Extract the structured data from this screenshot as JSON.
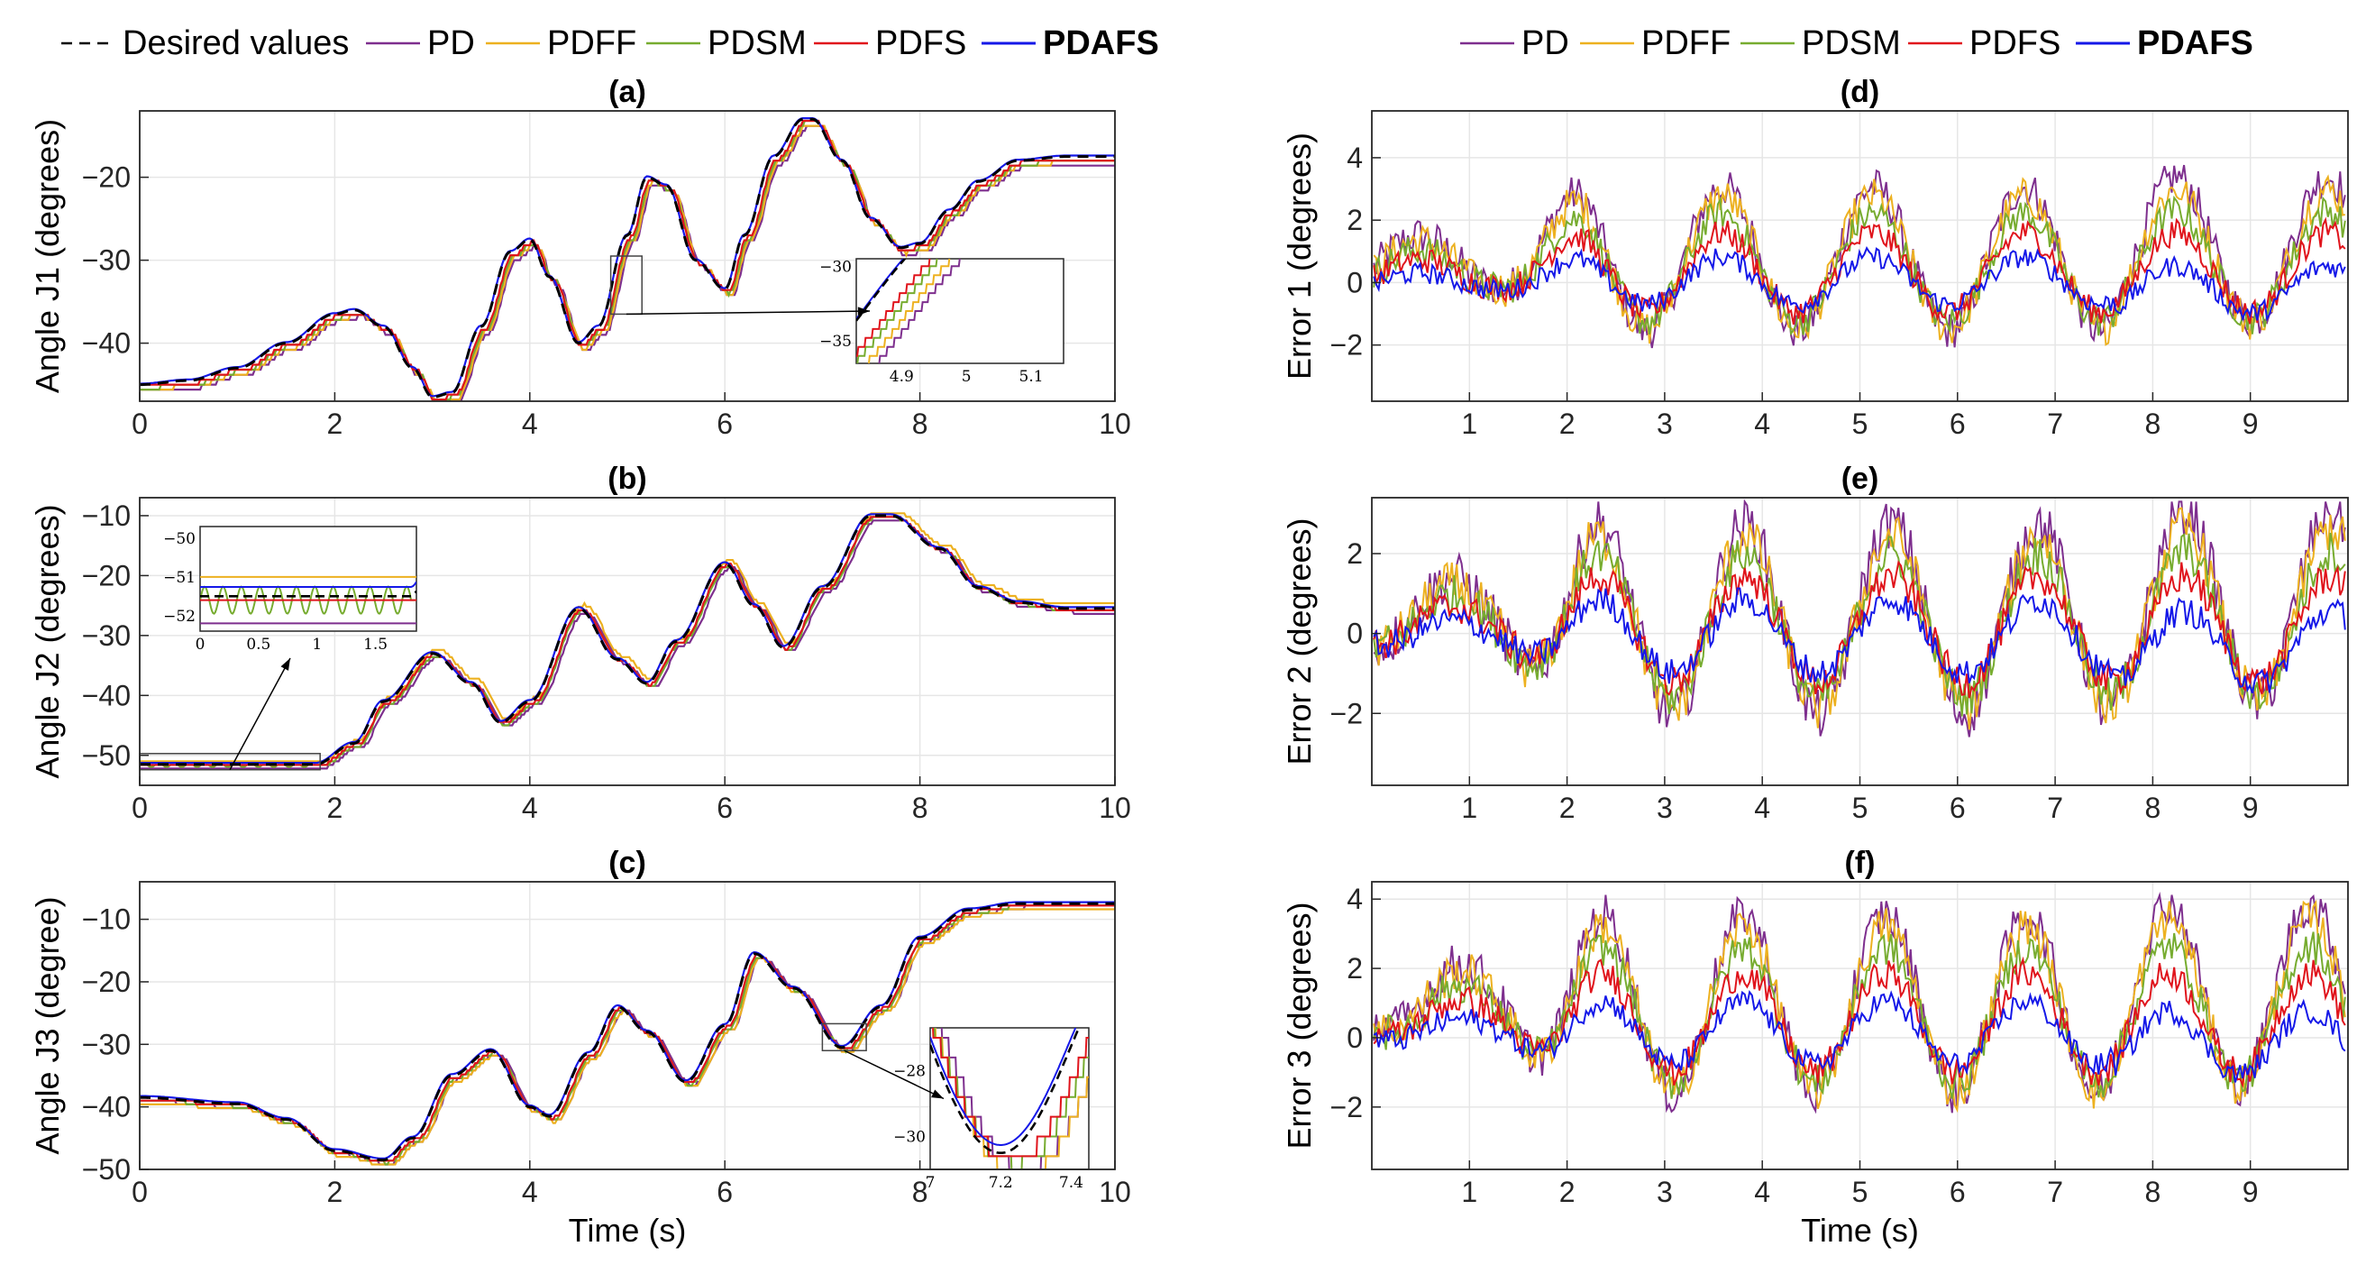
{
  "legend_left": [
    {
      "name": "Desired values",
      "color": "#000000",
      "dash": true,
      "bold": false
    },
    {
      "name": "PD",
      "color": "#7E2F8E",
      "dash": false,
      "bold": false
    },
    {
      "name": "PDFF",
      "color": "#EDB120",
      "dash": false,
      "bold": false
    },
    {
      "name": "PDSM",
      "color": "#77AC30",
      "dash": false,
      "bold": false
    },
    {
      "name": "PDFS",
      "color": "#E0141C",
      "dash": false,
      "bold": false
    },
    {
      "name": "PDAFS",
      "color": "#1518E8",
      "dash": false,
      "bold": true
    }
  ],
  "legend_right": [
    {
      "name": "PD",
      "color": "#7E2F8E",
      "bold": false
    },
    {
      "name": "PDFF",
      "color": "#EDB120",
      "bold": false
    },
    {
      "name": "PDSM",
      "color": "#77AC30",
      "bold": false
    },
    {
      "name": "PDFS",
      "color": "#E0141C",
      "bold": false
    },
    {
      "name": "PDAFS",
      "color": "#1518E8",
      "bold": true
    }
  ],
  "panel_titles": [
    "(a)",
    "(b)",
    "(c)",
    "(d)",
    "(e)",
    "(f)"
  ],
  "ylabels": [
    "Angle J1 (degrees)",
    "Angle J2 (degrees)",
    "Angle J3 (degree)",
    "Error 1 (degrees)",
    "Error 2 (degrees)",
    "Error 3 (degrees)"
  ],
  "xlabel": "Time (s)",
  "chart_data": [
    {
      "id": "a",
      "type": "line",
      "title": "(a)",
      "xlabel": "",
      "ylabel": "Angle J1 (degrees)",
      "xlim": [
        0,
        10
      ],
      "ylim": [
        -47,
        -12
      ],
      "xticks": [
        0,
        2,
        4,
        6,
        8,
        10
      ],
      "yticks": [
        -40,
        -30,
        -20
      ],
      "grid": true,
      "desired_x": [
        0,
        0.5,
        1.0,
        1.5,
        2.0,
        2.2,
        2.5,
        2.8,
        3.0,
        3.2,
        3.5,
        3.8,
        4.0,
        4.2,
        4.5,
        4.7,
        5.0,
        5.2,
        5.4,
        5.7,
        6.0,
        6.2,
        6.5,
        6.8,
        6.9,
        7.2,
        7.5,
        7.8,
        8.0,
        8.3,
        8.6,
        9.0,
        9.5,
        10.0
      ],
      "desired_y": [
        -45,
        -44.5,
        -43,
        -40,
        -36.5,
        -36,
        -38,
        -43,
        -46.5,
        -46,
        -38,
        -29,
        -27.5,
        -32,
        -40,
        -38,
        -27,
        -20,
        -21,
        -30,
        -33.5,
        -27,
        -17.5,
        -13,
        -13,
        -18,
        -25,
        -28.5,
        -28,
        -24,
        -20.5,
        -18,
        -17.5,
        -17.5
      ],
      "series_offsets": {
        "PD": -1.4,
        "PDFF": -1.0,
        "PDSM": -0.7,
        "PDFS": -0.5,
        "PDAFS": 0.2
      },
      "zoom": {
        "xlim": [
          4.83,
          5.15
        ],
        "ylim": [
          -36.5,
          -29.5
        ],
        "xticks": [
          4.9,
          5,
          5.1
        ],
        "yticks": [
          -35,
          -30
        ]
      }
    },
    {
      "id": "b",
      "type": "line",
      "title": "(b)",
      "xlabel": "",
      "ylabel": "Angle J2 (degrees)",
      "xlim": [
        0,
        10
      ],
      "ylim": [
        -55,
        -7
      ],
      "xticks": [
        0,
        2,
        4,
        6,
        8,
        10
      ],
      "yticks": [
        -50,
        -40,
        -30,
        -20,
        -10
      ],
      "grid": true,
      "desired_x": [
        0,
        1.0,
        1.8,
        2.2,
        2.5,
        3.0,
        3.4,
        3.7,
        4.0,
        4.5,
        4.9,
        5.2,
        5.5,
        6.0,
        6.3,
        6.6,
        7.0,
        7.5,
        7.7,
        8.2,
        8.6,
        9.0,
        9.5,
        10.0
      ],
      "desired_y": [
        -51.5,
        -51.5,
        -51.5,
        -48,
        -41,
        -33,
        -38,
        -44.5,
        -41,
        -25.5,
        -34,
        -38,
        -31,
        -18,
        -25,
        -32,
        -22,
        -10,
        -10,
        -15.5,
        -22,
        -24.5,
        -25.5,
        -25.5
      ],
      "series_offsets": {
        "PD": -1.0,
        "PDFF": 1.0,
        "PDSM": -0.6,
        "PDFS": -0.3,
        "PDAFS": 0.4
      },
      "zoom": {
        "xlim": [
          0,
          1.85
        ],
        "ylim": [
          -52.4,
          -49.7
        ],
        "xticks": [
          0,
          0.5,
          1,
          1.5
        ],
        "yticks": [
          -52,
          -51,
          -50
        ]
      }
    },
    {
      "id": "c",
      "type": "line",
      "title": "(c)",
      "xlabel": "Time (s)",
      "ylabel": "Angle J3 (degree)",
      "xlim": [
        0,
        10
      ],
      "ylim": [
        -50,
        -4
      ],
      "xticks": [
        0,
        2,
        4,
        6,
        8,
        10
      ],
      "yticks": [
        -50,
        -40,
        -30,
        -20,
        -10
      ],
      "grid": true,
      "desired_x": [
        0,
        1.0,
        1.5,
        2.0,
        2.5,
        2.8,
        3.2,
        3.6,
        4.0,
        4.2,
        4.6,
        4.9,
        5.2,
        5.6,
        6.0,
        6.3,
        6.7,
        7.2,
        7.6,
        8.0,
        8.5,
        9.0,
        10.0
      ],
      "desired_y": [
        -38.5,
        -39.5,
        -42,
        -47,
        -48.5,
        -45,
        -35,
        -31,
        -40,
        -41.5,
        -31.5,
        -24,
        -28,
        -36,
        -27,
        -15.5,
        -21,
        -30.5,
        -24,
        -13,
        -8.5,
        -7.5,
        -7.5
      ],
      "series_offsets": {
        "PD": -1.0,
        "PDFF": -1.4,
        "PDSM": -0.7,
        "PDFS": -0.4,
        "PDAFS": 0.4
      },
      "zoom": {
        "xlim": [
          7.0,
          7.45
        ],
        "ylim": [
          -31,
          -26.7
        ],
        "xticks": [
          7,
          7.2,
          7.4
        ],
        "yticks": [
          -30,
          -28
        ]
      }
    },
    {
      "id": "d",
      "type": "line",
      "title": "(d)",
      "xlabel": "",
      "ylabel": "Error 1 (degrees)",
      "xlim": [
        0,
        10
      ],
      "ylim": [
        -3.8,
        5.5
      ],
      "xticks": [
        1,
        2,
        3,
        4,
        5,
        6,
        7,
        8,
        9
      ],
      "yticks": [
        -2,
        0,
        2,
        4
      ],
      "grid": true,
      "series_amplitude": {
        "PD": 1.0,
        "PDFF": 0.92,
        "PDSM": 0.75,
        "PDFS": 0.55,
        "PDAFS": 0.33
      }
    },
    {
      "id": "e",
      "type": "line",
      "title": "(e)",
      "xlabel": "",
      "ylabel": "Error 2 (degrees)",
      "xlim": [
        0,
        10
      ],
      "ylim": [
        -3.8,
        3.4
      ],
      "xticks": [
        1,
        2,
        3,
        4,
        5,
        6,
        7,
        8,
        9
      ],
      "yticks": [
        -2,
        0,
        2
      ],
      "grid": true,
      "series_amplitude": {
        "PD": 1.0,
        "PDFF": 0.9,
        "PDSM": 0.75,
        "PDFS": 0.55,
        "PDAFS": 0.38
      }
    },
    {
      "id": "f",
      "type": "line",
      "title": "(f)",
      "xlabel": "Time (s)",
      "ylabel": "Error 3 (degrees)",
      "xlim": [
        0,
        10
      ],
      "ylim": [
        -3.8,
        4.5
      ],
      "xticks": [
        1,
        2,
        3,
        4,
        5,
        6,
        7,
        8,
        9
      ],
      "yticks": [
        -2,
        0,
        2,
        4
      ],
      "grid": true,
      "series_amplitude": {
        "PD": 1.0,
        "PDFF": 0.92,
        "PDSM": 0.75,
        "PDFS": 0.55,
        "PDAFS": 0.35
      }
    }
  ]
}
